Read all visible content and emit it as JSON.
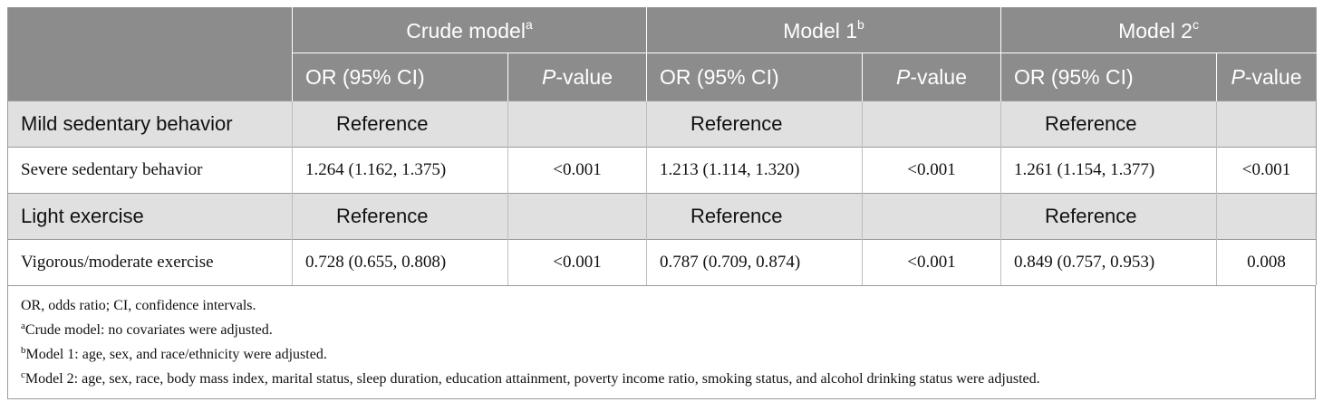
{
  "header": {
    "groups": [
      {
        "label": "Crude model",
        "sup": "a"
      },
      {
        "label": "Model 1",
        "sup": "b"
      },
      {
        "label": "Model 2",
        "sup": "c"
      }
    ],
    "or_label": "OR (95% CI)",
    "p_label_italic": "P",
    "p_label_rest": "-value"
  },
  "rows": [
    {
      "label": "Mild sedentary behavior",
      "type": "ref",
      "cells": [
        "Reference",
        "",
        "Reference",
        "",
        "Reference",
        ""
      ]
    },
    {
      "label": "Severe sedentary behavior",
      "type": "val",
      "cells": [
        "1.264 (1.162, 1.375)",
        "<0.001",
        "1.213 (1.114, 1.320)",
        "<0.001",
        "1.261 (1.154, 1.377)",
        "<0.001"
      ]
    },
    {
      "label": "Light exercise",
      "type": "ref",
      "cells": [
        "Reference",
        "",
        "Reference",
        "",
        "Reference",
        ""
      ]
    },
    {
      "label": "Vigorous/moderate exercise",
      "type": "val",
      "cells": [
        "0.728 (0.655, 0.808)",
        "<0.001",
        "0.787 (0.709, 0.874)",
        "<0.001",
        "0.849 (0.757, 0.953)",
        "0.008"
      ]
    }
  ],
  "notes": {
    "abbrev": "OR, odds ratio; CI, confidence intervals.",
    "items": [
      {
        "sup": "a",
        "text": "Crude model: no covariates were adjusted."
      },
      {
        "sup": "b",
        "text": "Model 1: age, sex, and race/ethnicity were adjusted."
      },
      {
        "sup": "c",
        "text": "Model 2: age, sex, race, body mass index, marital status, sleep duration, education attainment, poverty income ratio, smoking status, and alcohol drinking status were adjusted."
      }
    ]
  }
}
